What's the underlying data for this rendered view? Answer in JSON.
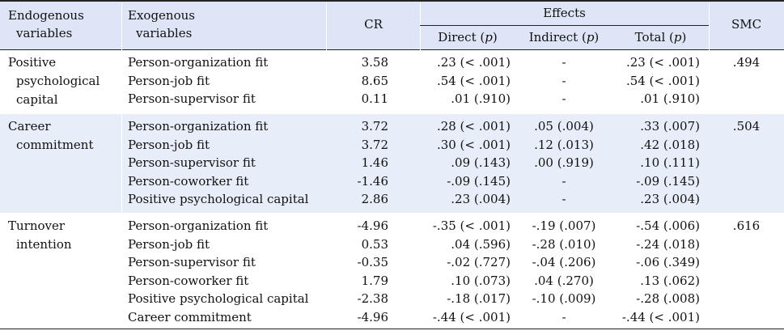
{
  "headers": {
    "endogenous": [
      "Endogenous",
      "variables"
    ],
    "exogenous": [
      "Exogenous",
      "variables"
    ],
    "cr": "CR",
    "effects": "Effects",
    "direct": "Direct (",
    "indirect": "Indirect (",
    "total": "Total (",
    "p": "p",
    "close": ")",
    "smc": "SMC"
  },
  "groups": [
    {
      "label": [
        "Positive",
        "psychological",
        "capital"
      ],
      "smc": ".494",
      "rows": [
        {
          "exo": "Person-organization fit",
          "cr": "3.58",
          "direct": ".23 (< .001)",
          "indirect": "-",
          "total": ".23 (< .001)"
        },
        {
          "exo": "Person-job fit",
          "cr": "8.65",
          "direct": ".54 (< .001)",
          "indirect": "-",
          "total": ".54 (< .001)"
        },
        {
          "exo": "Person-supervisor fit",
          "cr": "0.11",
          "direct": ".01 (.910)",
          "indirect": "-",
          "total": ".01 (.910)"
        }
      ]
    },
    {
      "label": [
        "Career",
        "commitment"
      ],
      "smc": ".504",
      "rows": [
        {
          "exo": "Person-organization fit",
          "cr": "3.72",
          "direct": ".28 (< .001)",
          "indirect": ".05 (.004)",
          "total": ".33 (.007)"
        },
        {
          "exo": "Person-job fit",
          "cr": "3.72",
          "direct": ".30 (< .001)",
          "indirect": ".12 (.013)",
          "total": ".42 (.018)"
        },
        {
          "exo": "Person-supervisor fit",
          "cr": "1.46",
          "direct": ".09 (.143)",
          "indirect": ".00 (.919)",
          "total": ".10 (.111)"
        },
        {
          "exo": "Person-coworker fit",
          "cr": "-1.46",
          "direct": "-.09 (.145)",
          "indirect": "-",
          "total": "-.09 (.145)"
        },
        {
          "exo": "Positive psychological capital",
          "cr": "2.86",
          "direct": ".23 (.004)",
          "indirect": "-",
          "total": ".23 (.004)"
        }
      ]
    },
    {
      "label": [
        "Turnover",
        "intention"
      ],
      "smc": ".616",
      "rows": [
        {
          "exo": "Person-organization fit",
          "cr": "-4.96",
          "direct": "-.35 (< .001)",
          "indirect": "-.19 (.007)",
          "total": "-.54 (.006)"
        },
        {
          "exo": "Person-job fit",
          "cr": "0.53",
          "direct": ".04 (.596)",
          "indirect": "-.28 (.010)",
          "total": "-.24 (.018)"
        },
        {
          "exo": "Person-supervisor fit",
          "cr": "-0.35",
          "direct": "-.02 (.727)",
          "indirect": "-.04 (.206)",
          "total": "-.06 (.349)"
        },
        {
          "exo": "Person-coworker fit",
          "cr": "1.79",
          "direct": ".10 (.073)",
          "indirect": ".04 (.270)",
          "total": ".13 (.062)"
        },
        {
          "exo": "Positive psychological capital",
          "cr": "-2.38",
          "direct": "-.18 (.017)",
          "indirect": "-.10 (.009)",
          "total": "-.28 (.008)"
        },
        {
          "exo": "Career commitment",
          "cr": "-4.96",
          "direct": "-.44 (< .001)",
          "indirect": "-",
          "total": "-.44 (< .001)"
        }
      ]
    }
  ],
  "colors": {
    "header_bg": "#dde5f6",
    "band_bg": "#e7edf9",
    "rule": "#222222"
  }
}
